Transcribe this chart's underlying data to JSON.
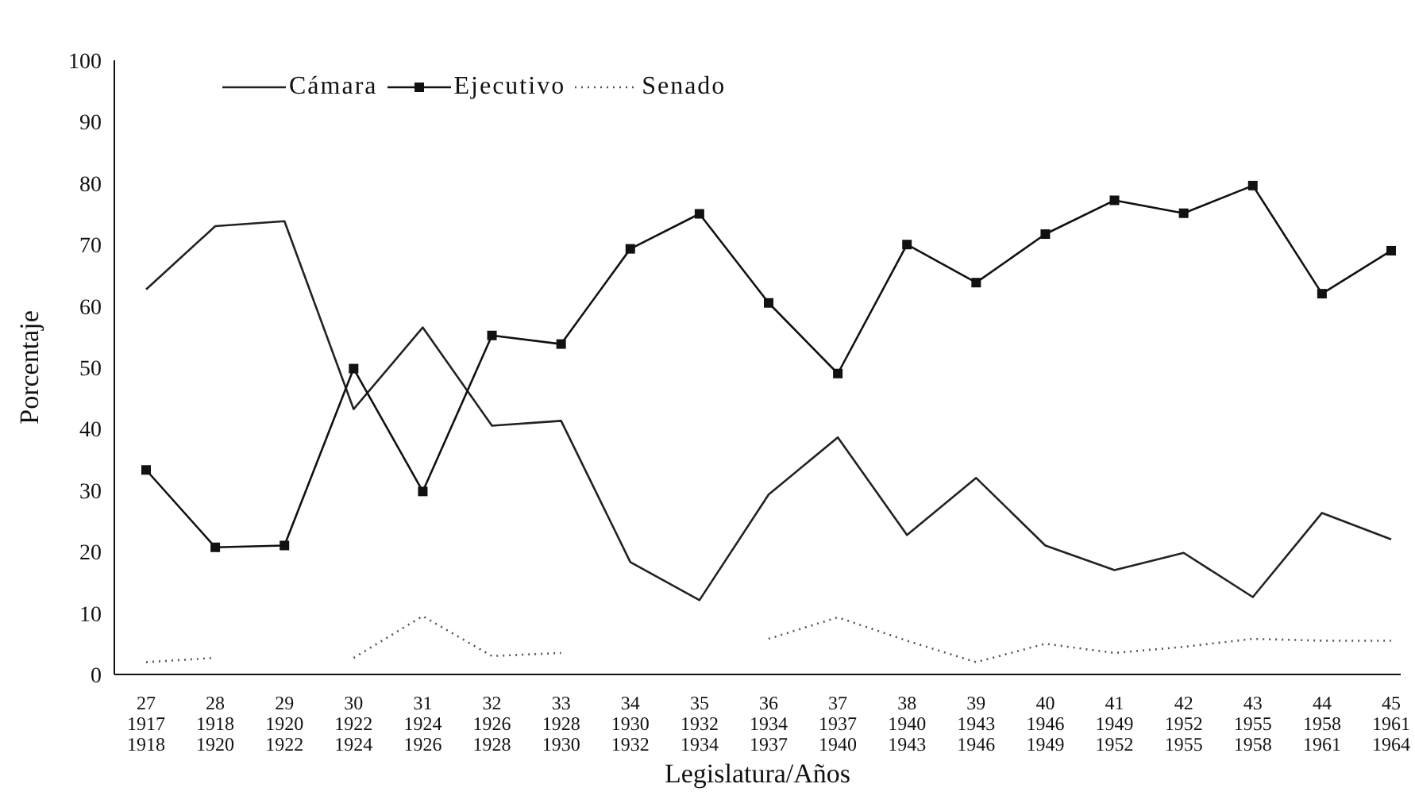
{
  "chart_data": {
    "type": "line",
    "xlabel": "Legislatura/Años",
    "ylabel": "Porcentaje",
    "categories": [
      "27\n1917\n1918",
      "28\n1918\n1920",
      "29\n1920\n1922",
      "30\n1922\n1924",
      "31\n1924\n1926",
      "32\n1926\n1928",
      "33\n1928\n1930",
      "34\n1930\n1932",
      "35\n1932\n1934",
      "36\n1934\n1937",
      "37\n1937\n1940",
      "38\n1940\n1943",
      "39\n1943\n1946",
      "40\n1946\n1949",
      "41\n1949\n1952",
      "42\n1952\n1955",
      "43\n1955\n1958",
      "44\n1958\n1961",
      "45\n1961\n1964"
    ],
    "series": [
      {
        "name": "Cámara",
        "color": "#222222",
        "marker": "none",
        "line_style": "solid",
        "values": [
          62.7,
          73,
          73.8,
          43.2,
          56.5,
          40.5,
          41.3,
          18.3,
          12.1,
          29.3,
          38.6,
          22.7,
          32,
          21,
          17,
          19.8,
          12.6,
          26.3,
          22
        ]
      },
      {
        "name": "Ejecutivo",
        "color": "#111111",
        "marker": "square",
        "line_style": "solid",
        "values": [
          33.3,
          20.7,
          21,
          49.8,
          29.8,
          55.2,
          53.8,
          69.3,
          75,
          60.5,
          49,
          70,
          63.8,
          71.7,
          77.2,
          75.1,
          79.6,
          62,
          69
        ]
      },
      {
        "name": "Senado",
        "color": "#555555",
        "marker": "none",
        "line_style": "dotted",
        "values": [
          2,
          2.7,
          null,
          2.7,
          9.5,
          3,
          3.5,
          null,
          null,
          5.8,
          9.3,
          5.5,
          2,
          5,
          3.5,
          4.5,
          5.8,
          5.5,
          5.5
        ]
      }
    ],
    "ylim": [
      0,
      100
    ],
    "yticks": [
      0,
      10,
      20,
      30,
      40,
      50,
      60,
      70,
      80,
      90,
      100
    ],
    "legend": "top left"
  }
}
